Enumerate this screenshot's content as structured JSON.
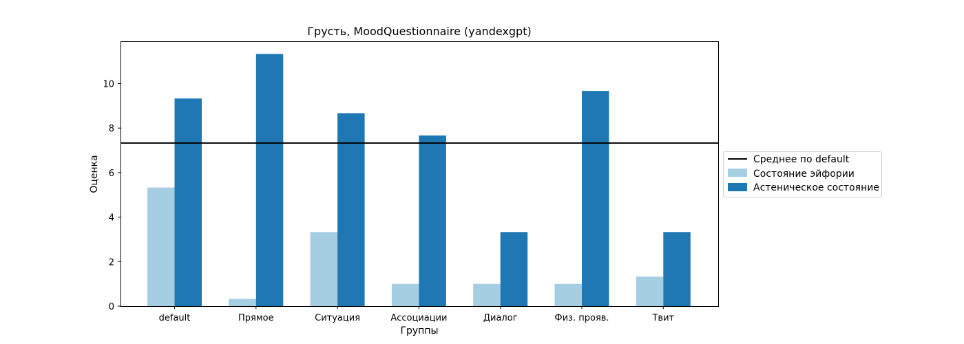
{
  "chart_data": {
    "type": "bar",
    "title": "Грусть, MoodQuestionnaire (yandexgpt)",
    "xlabel": "Группы",
    "ylabel": "Оценка",
    "categories": [
      "default",
      "Прямое",
      "Ситуация",
      "Ассоциации",
      "Диалог",
      "Физ. прояв.",
      "Твит"
    ],
    "series": [
      {
        "name": "Состояние эйфории",
        "color": "#a6cee3",
        "values": [
          5.33,
          0.33,
          3.33,
          1.0,
          1.0,
          1.0,
          1.33
        ]
      },
      {
        "name": "Астеническое состояние",
        "color": "#1f78b4",
        "values": [
          9.33,
          11.33,
          8.67,
          7.67,
          3.33,
          9.67,
          3.33
        ]
      }
    ],
    "reference_line": {
      "name": "Среднее по default",
      "value": 7.33,
      "color": "#000000"
    },
    "ylim": [
      0,
      11.9
    ],
    "yticks": [
      0,
      2,
      4,
      6,
      8,
      10
    ],
    "grid": false,
    "legend_placement": "right, outside plot"
  }
}
